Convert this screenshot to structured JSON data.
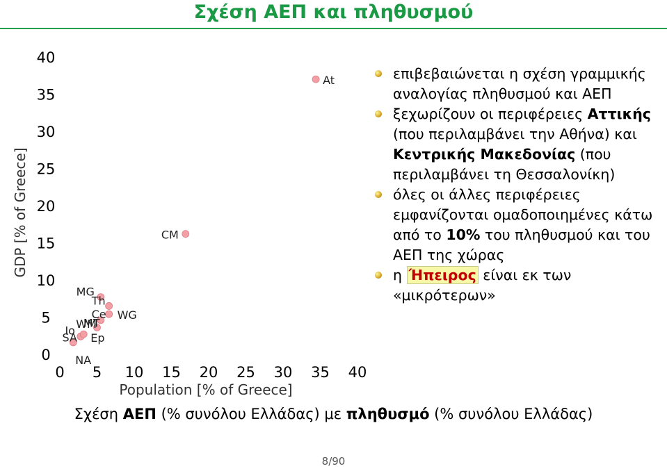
{
  "slide": {
    "title": "Σχέση ΑΕΠ και πληθυσμού",
    "caption_parts": [
      "Σχέση ",
      "ΑΕΠ",
      " (% συνόλου Ελλάδας) με ",
      "πληθυσμό",
      " (% συνόλου Ελλάδας)"
    ],
    "page": "8/90",
    "accent_color": "#1b9a45"
  },
  "bullets": [
    {
      "parts": [
        {
          "t": "επιβεβαιώνεται η σχέση γραμμικής αναλογίας πληθυσμού και ΑΕΠ"
        }
      ]
    },
    {
      "parts": [
        {
          "t": "ξεχωρίζουν οι περιφέρειες "
        },
        {
          "t": "Αττικής",
          "b": true
        },
        {
          "t": " (που περιλαμβάνει την Αθήνα) και "
        },
        {
          "t": "Κεντρικής Μακεδονίας",
          "b": true
        },
        {
          "t": " (που περιλαμβάνει τη Θεσσαλονίκη)"
        }
      ]
    },
    {
      "parts": [
        {
          "t": "όλες οι άλλες περιφέρειες εμφανίζονται ομαδοποιημένες κάτω από το "
        },
        {
          "t": "10%",
          "b": true
        },
        {
          "t": " του πληθυσμού και του ΑΕΠ της χώρας"
        }
      ]
    },
    {
      "parts": [
        {
          "t": "η "
        },
        {
          "t": "Ήπειρος",
          "hl": true
        },
        {
          "t": " είναι εκ των «μικρότερων»"
        }
      ]
    }
  ],
  "chart_data": {
    "type": "scatter",
    "xlabel": "Population [% of Greece]",
    "ylabel": "GDP [% of Greece]",
    "xlim": [
      0,
      40
    ],
    "ylim": [
      0,
      40
    ],
    "xticks": [
      0,
      5,
      10,
      15,
      20,
      25,
      30,
      35,
      40
    ],
    "yticks": [
      0,
      5,
      10,
      15,
      20,
      25,
      30,
      35,
      40
    ],
    "marker_color": "#f2a0a6",
    "points": [
      {
        "label": "At",
        "x": 34.4,
        "y": 37.0
      },
      {
        "label": "CM",
        "x": 16.9,
        "y": 16.2
      },
      {
        "label": "MG",
        "x": 5.5,
        "y": 7.7
      },
      {
        "label": "Th",
        "x": 6.6,
        "y": 6.5
      },
      {
        "label": "Ce",
        "x": 6.6,
        "y": 5.4
      },
      {
        "label": "WG",
        "x": 6.6,
        "y": 5.4
      },
      {
        "label": "WM",
        "x": 5.5,
        "y": 4.6
      },
      {
        "label": "MT",
        "x": 5.0,
        "y": 3.6
      },
      {
        "label": "Io",
        "x": 2.8,
        "y": 2.4
      },
      {
        "label": "SA",
        "x": 2.8,
        "y": 2.4
      },
      {
        "label": "Ep",
        "x": 3.2,
        "y": 2.7
      },
      {
        "label": "NA",
        "x": 1.8,
        "y": 1.6
      }
    ],
    "point_labels_shown": [
      "At",
      "CM",
      "MG",
      "Th",
      "Ce",
      "WG",
      "WM",
      "MT",
      "Io",
      "SA",
      "Ep",
      "NA"
    ]
  }
}
